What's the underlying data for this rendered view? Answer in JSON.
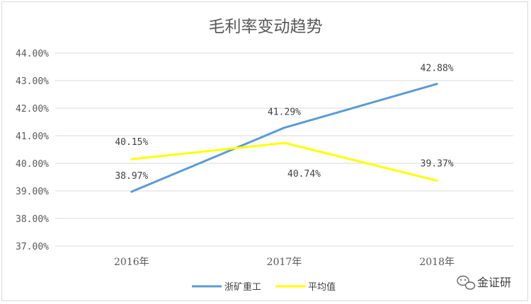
{
  "chart_data": {
    "type": "line",
    "title": "毛利率变动趋势",
    "categories": [
      "2016年",
      "2017年",
      "2018年"
    ],
    "series": [
      {
        "name": "浙矿重工",
        "values": [
          38.97,
          41.29,
          42.88
        ],
        "color": "#5b9bd5"
      },
      {
        "name": "平均值",
        "values": [
          40.15,
          40.74,
          39.37
        ],
        "color": "#ffff00"
      }
    ],
    "ylim": [
      37.0,
      44.0
    ],
    "yticks": [
      "37.00%",
      "38.00%",
      "39.00%",
      "40.00%",
      "41.00%",
      "42.00%",
      "43.00%",
      "44.00%"
    ],
    "data_labels": [
      [
        "38.97%",
        "41.29%",
        "42.88%"
      ],
      [
        "40.15%",
        "40.74%",
        "39.37%"
      ]
    ],
    "xlabel": "",
    "ylabel": "",
    "grid": true,
    "legend_position": "bottom"
  },
  "watermark": {
    "text": "金证研",
    "icon": "chat-bubble-icon"
  }
}
